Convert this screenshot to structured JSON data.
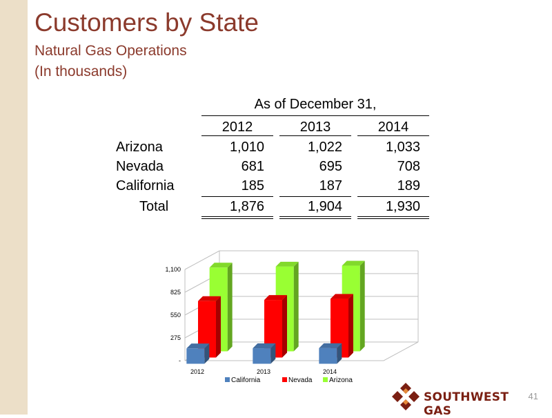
{
  "slide": {
    "title": "Customers by State",
    "subtitle": "Natural Gas Operations",
    "unit_note": "(In thousands)",
    "page_number": "41",
    "logo_text": "SOUTHWEST GAS"
  },
  "table": {
    "caption": "As of December 31,",
    "columns": [
      "2012",
      "2013",
      "2014"
    ],
    "rows": [
      {
        "label": "Arizona",
        "values": [
          "1,010",
          "1,022",
          "1,033"
        ]
      },
      {
        "label": "Nevada",
        "values": [
          "681",
          "695",
          "708"
        ]
      },
      {
        "label": "California",
        "values": [
          "185",
          "187",
          "189"
        ]
      }
    ],
    "total": {
      "label": "Total",
      "values": [
        "1,876",
        "1,904",
        "1,930"
      ]
    }
  },
  "colors": {
    "title": "#8b3a2c",
    "california": "#4f81bd",
    "nevada": "#ff0000",
    "arizona": "#99ff33",
    "accent_bar": "#ecdfc8"
  },
  "chart_data": {
    "type": "bar",
    "style": "3d-clustered",
    "categories": [
      "2012",
      "2013",
      "2014"
    ],
    "series": [
      {
        "name": "California",
        "values": [
          185,
          187,
          189
        ],
        "color": "#4f81bd"
      },
      {
        "name": "Nevada",
        "values": [
          681,
          695,
          708
        ],
        "color": "#ff0000"
      },
      {
        "name": "Arizona",
        "values": [
          1010,
          1022,
          1033
        ],
        "color": "#99ff33"
      }
    ],
    "yticks": [
      "-",
      "275",
      "550",
      "825",
      "1,100"
    ],
    "ylim": [
      0,
      1100
    ],
    "grid": true,
    "legend": "bottom"
  }
}
